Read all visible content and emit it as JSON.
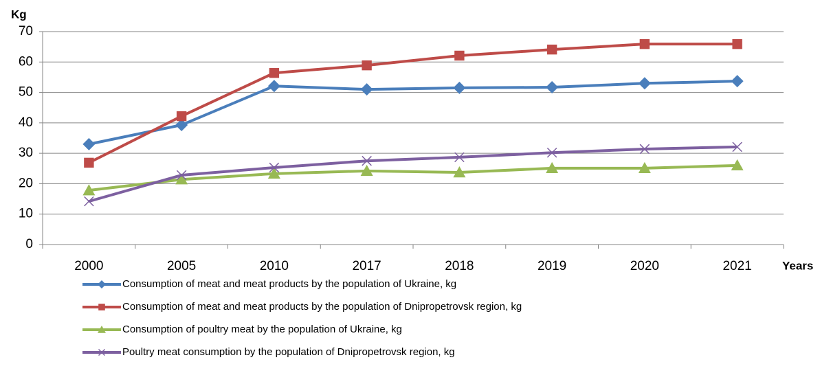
{
  "chart_data": {
    "type": "line",
    "y_label": "Kg",
    "x_label": "Years",
    "categories": [
      "2000",
      "2005",
      "2010",
      "2017",
      "2018",
      "2019",
      "2020",
      "2021"
    ],
    "series": [
      {
        "name": "Consumption of meat and meat products by the population of Ukraine, kg",
        "color": "#4a7ebb",
        "marker": "diamond",
        "values": [
          33.0,
          39.3,
          52.1,
          51.0,
          51.5,
          51.7,
          53.0,
          53.7
        ]
      },
      {
        "name": "Consumption of meat and meat products by the population of Dnipropetrovsk region, kg",
        "color": "#be4b48",
        "marker": "square",
        "values": [
          26.9,
          42.2,
          56.4,
          58.9,
          62.1,
          64.1,
          65.9,
          65.9
        ]
      },
      {
        "name": "Consumption of poultry meat by the population of Ukraine, kg",
        "color": "#98b954",
        "marker": "triangle",
        "values": [
          17.8,
          21.4,
          23.3,
          24.2,
          23.7,
          25.1,
          25.1,
          26.0
        ]
      },
      {
        "name": "Poultry meat consumption by the population of Dnipropetrovsk region, kg",
        "color": "#7d60a0",
        "marker": "x",
        "values": [
          14.2,
          22.8,
          25.3,
          27.5,
          28.7,
          30.2,
          31.4,
          32.1
        ]
      }
    ],
    "ylim": [
      0,
      70
    ],
    "yticks": [
      0,
      10,
      20,
      30,
      40,
      50,
      60,
      70
    ],
    "grid": true
  }
}
